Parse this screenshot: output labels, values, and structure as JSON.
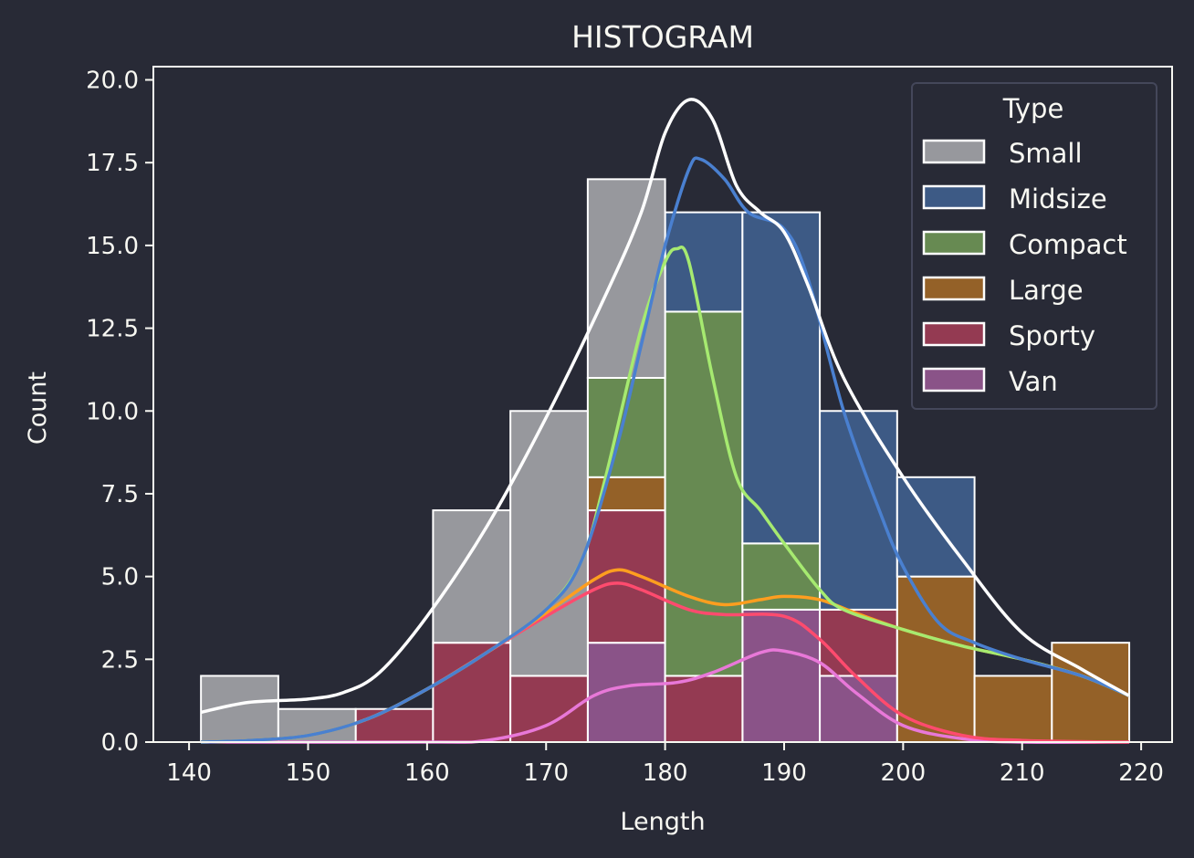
{
  "chart_data": {
    "type": "bar",
    "subtype": "stacked-histogram-with-kde",
    "title": "HISTOGRAM",
    "xlabel": "Length",
    "ylabel": "Count",
    "xlim": [
      137,
      222.6
    ],
    "ylim": [
      0,
      20.4
    ],
    "xticks": [
      140,
      150,
      160,
      170,
      180,
      190,
      200,
      210,
      220
    ],
    "yticks": [
      "0.0",
      "2.5",
      "5.0",
      "7.5",
      "10.0",
      "12.5",
      "15.0",
      "17.5",
      "20.0"
    ],
    "grid": false,
    "legend": {
      "title": "Type",
      "placement": "top-right"
    },
    "bin_edges": [
      141,
      147.5,
      154,
      160.5,
      167,
      173.5,
      180,
      186.5,
      193,
      199.5,
      206,
      212.5,
      219
    ],
    "stack_order_bottom_to_top": [
      "Van",
      "Sporty",
      "Large",
      "Compact",
      "Midsize",
      "Small"
    ],
    "series": [
      {
        "name": "Small",
        "color": "#97989d",
        "line": "#ffffff",
        "values": [
          2,
          1,
          0,
          4,
          8,
          6,
          0,
          0,
          0,
          0,
          0,
          0
        ]
      },
      {
        "name": "Midsize",
        "color": "#3d5a85",
        "line": "#4a80d0",
        "values": [
          0,
          0,
          0,
          0,
          0,
          0,
          3,
          10,
          6,
          3,
          0,
          0
        ]
      },
      {
        "name": "Compact",
        "color": "#678a52",
        "line": "#a6ea70",
        "values": [
          0,
          0,
          0,
          0,
          0,
          3,
          11,
          2,
          0,
          0,
          0,
          0
        ]
      },
      {
        "name": "Large",
        "color": "#946128",
        "line": "#ff9e1f",
        "values": [
          0,
          0,
          0,
          0,
          0,
          1,
          0,
          0,
          0,
          5,
          2,
          3
        ]
      },
      {
        "name": "Sporty",
        "color": "#943a52",
        "line": "#ff4b6e",
        "values": [
          0,
          0,
          1,
          3,
          2,
          4,
          2,
          0,
          2,
          0,
          0,
          0
        ]
      },
      {
        "name": "Van",
        "color": "#8a5388",
        "line": "#e878d8",
        "values": [
          0,
          0,
          0,
          0,
          0,
          3,
          0,
          4,
          2,
          0,
          0,
          0
        ]
      }
    ],
    "kde_cumulative": {
      "Small": [
        [
          141,
          0.9
        ],
        [
          145,
          1.2
        ],
        [
          150,
          1.3
        ],
        [
          153,
          1.5
        ],
        [
          156,
          2.1
        ],
        [
          160,
          3.8
        ],
        [
          165,
          6.5
        ],
        [
          170,
          9.8
        ],
        [
          175,
          13.5
        ],
        [
          178,
          16
        ],
        [
          180,
          18.4
        ],
        [
          182,
          19.4
        ],
        [
          184,
          18.8
        ],
        [
          186,
          16.8
        ],
        [
          188,
          16
        ],
        [
          190,
          15.4
        ],
        [
          192,
          13.8
        ],
        [
          195,
          11
        ],
        [
          200,
          8
        ],
        [
          205,
          5.5
        ],
        [
          210,
          3.3
        ],
        [
          215,
          2.2
        ],
        [
          219,
          1.4
        ]
      ],
      "Midsize": [
        [
          141,
          0
        ],
        [
          145,
          0.05
        ],
        [
          150,
          0.2
        ],
        [
          155,
          0.7
        ],
        [
          160,
          1.6
        ],
        [
          165,
          2.7
        ],
        [
          170,
          4
        ],
        [
          173,
          5.5
        ],
        [
          176,
          9
        ],
        [
          178,
          12
        ],
        [
          180,
          15
        ],
        [
          182,
          17.3
        ],
        [
          183,
          17.6
        ],
        [
          185,
          17
        ],
        [
          187,
          16
        ],
        [
          190,
          15.5
        ],
        [
          192,
          14
        ],
        [
          195,
          10
        ],
        [
          198,
          7
        ],
        [
          200,
          5.3
        ],
        [
          203,
          3.6
        ],
        [
          206,
          3
        ],
        [
          210,
          2.5
        ],
        [
          215,
          2
        ],
        [
          219,
          1.4
        ]
      ],
      "Compact": [
        [
          141,
          0
        ],
        [
          145,
          0.05
        ],
        [
          150,
          0.2
        ],
        [
          155,
          0.7
        ],
        [
          160,
          1.6
        ],
        [
          165,
          2.7
        ],
        [
          170,
          4
        ],
        [
          173,
          5.5
        ],
        [
          175,
          8
        ],
        [
          178,
          12.5
        ],
        [
          180,
          14.5
        ],
        [
          181,
          14.9
        ],
        [
          182,
          14.5
        ],
        [
          184,
          11
        ],
        [
          186,
          8
        ],
        [
          188,
          7
        ],
        [
          190,
          6
        ],
        [
          193,
          4.6
        ],
        [
          195,
          4
        ],
        [
          200,
          3.4
        ],
        [
          205,
          2.9
        ],
        [
          210,
          2.5
        ],
        [
          215,
          2
        ],
        [
          219,
          1.4
        ]
      ],
      "Large": [
        [
          141,
          0
        ],
        [
          145,
          0.05
        ],
        [
          150,
          0.2
        ],
        [
          155,
          0.7
        ],
        [
          160,
          1.6
        ],
        [
          165,
          2.7
        ],
        [
          170,
          3.9
        ],
        [
          174,
          4.9
        ],
        [
          176,
          5.2
        ],
        [
          178,
          5
        ],
        [
          182,
          4.4
        ],
        [
          185,
          4.15
        ],
        [
          188,
          4.3
        ],
        [
          190,
          4.4
        ],
        [
          193,
          4.3
        ],
        [
          196,
          3.9
        ],
        [
          200,
          3.4
        ],
        [
          205,
          2.9
        ],
        [
          210,
          2.5
        ],
        [
          215,
          2
        ],
        [
          219,
          1.4
        ]
      ],
      "Sporty": [
        [
          141,
          0
        ],
        [
          145,
          0.05
        ],
        [
          150,
          0.2
        ],
        [
          155,
          0.7
        ],
        [
          160,
          1.6
        ],
        [
          165,
          2.7
        ],
        [
          170,
          3.8
        ],
        [
          174,
          4.6
        ],
        [
          176,
          4.8
        ],
        [
          178,
          4.6
        ],
        [
          182,
          4
        ],
        [
          185,
          3.85
        ],
        [
          190,
          3.8
        ],
        [
          193,
          3.1
        ],
        [
          196,
          2
        ],
        [
          200,
          0.8
        ],
        [
          205,
          0.2
        ],
        [
          210,
          0.05
        ],
        [
          219,
          0
        ]
      ],
      "Van": [
        [
          141,
          0
        ],
        [
          160,
          0
        ],
        [
          165,
          0.05
        ],
        [
          170,
          0.5
        ],
        [
          174,
          1.4
        ],
        [
          177,
          1.7
        ],
        [
          181,
          1.8
        ],
        [
          184,
          2.1
        ],
        [
          188,
          2.7
        ],
        [
          190,
          2.75
        ],
        [
          193,
          2.4
        ],
        [
          196,
          1.5
        ],
        [
          200,
          0.5
        ],
        [
          205,
          0.1
        ],
        [
          210,
          0
        ],
        [
          219,
          0
        ]
      ]
    }
  }
}
